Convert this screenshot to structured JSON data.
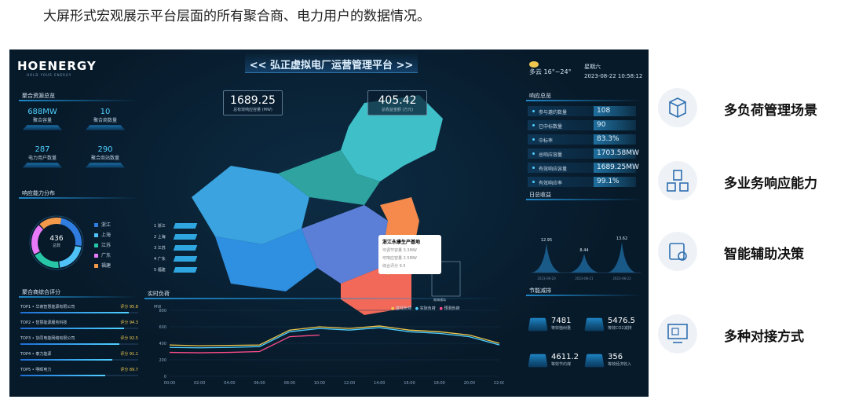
{
  "caption": "大屏形式宏观展示平台层面的所有聚合商、电力用户的数据情况。",
  "dashboard": {
    "logo": "HOENERGY",
    "logo_sub": "HOLD YOUR ENERGY",
    "title": "<< 弘正虚拟电厂运营管理平台 >>",
    "weather": {
      "icon": "partly-cloudy-icon",
      "text": "多云 16°~24°"
    },
    "weekday": "星期六",
    "datetime": "2023-08-22  10:58:12",
    "resources": {
      "title": "聚合资源总览",
      "items": [
        {
          "value": "688MW",
          "label": "聚合容量"
        },
        {
          "value": "10",
          "label": "聚合商数量"
        },
        {
          "value": "287",
          "label": "电力用户数量"
        },
        {
          "value": "290",
          "label": "聚合商站数量"
        }
      ]
    },
    "distribution": {
      "title": "响应能力分布",
      "center_value": "436",
      "center_label": "总数",
      "legend": [
        {
          "name": "浙江",
          "color": "#2f7de1"
        },
        {
          "name": "上海",
          "color": "#4fc3f7"
        },
        {
          "name": "江苏",
          "color": "#26c6a6"
        },
        {
          "name": "广东",
          "color": "#e879f9"
        },
        {
          "name": "福建",
          "color": "#f2994a"
        }
      ],
      "shares": [
        0.27,
        0.2,
        0.18,
        0.2,
        0.15
      ]
    },
    "ranking": {
      "title": "聚合商综合评分",
      "rows": [
        {
          "name": "TOP1 • 华南智慧能源有限公司",
          "score": "评分 95.8",
          "fraction": 0.92
        },
        {
          "name": "TOP2 • 智慧能源服务科技",
          "score": "评分 94.3",
          "fraction": 0.88
        },
        {
          "name": "TOP3 • 协同电能网络有限公司",
          "score": "评分 92.5",
          "fraction": 0.84
        },
        {
          "name": "TOP4 • 泰力能源",
          "score": "评分 91.1",
          "fraction": 0.78
        },
        {
          "name": "TOP5 • 明晖电力",
          "score": "评分 89.7",
          "fraction": 0.72
        }
      ]
    },
    "map": {
      "total_capacity": {
        "value": "1689.25",
        "label": "总有效响应容量 (MW)"
      },
      "total_revenue": {
        "value": "405.42",
        "label": "总收益金额 (万元)"
      },
      "provinces": [
        {
          "rank": "1",
          "name": "浙江"
        },
        {
          "rank": "2",
          "name": "上海"
        },
        {
          "rank": "3",
          "name": "江苏"
        },
        {
          "rank": "4",
          "name": "广东"
        },
        {
          "rank": "5",
          "name": "福建"
        }
      ],
      "tooltip": {
        "title": "浙江永康生产基地",
        "rows": [
          "可调节容量  3.3MW",
          "可响应容量  2.5MW",
          "综合评分  9.5"
        ]
      },
      "inset_label": "南海诸岛"
    },
    "response_overview": {
      "title": "响应总览",
      "rows": [
        {
          "label": "参与邀约数量",
          "value": "108"
        },
        {
          "label": "已中标数量",
          "value": "90"
        },
        {
          "label": "中标率",
          "value": "83.3%"
        },
        {
          "label": "总响应容量",
          "value": "1703.58MW"
        },
        {
          "label": "有效响应容量",
          "value": "1689.25MW"
        },
        {
          "label": "有效响应率",
          "value": "99.1%"
        }
      ]
    },
    "daily_revenue": {
      "title": "日总收益",
      "peaks": [
        "12.95",
        "8.44",
        "13.62"
      ],
      "dates": [
        "2023-08-20",
        "2023-08-21",
        "2023-08-22"
      ]
    },
    "energy_saving": {
      "title": "节能减排",
      "items": [
        {
          "value": "7481",
          "label": "等效植树量"
        },
        {
          "value": "5476.5",
          "label": "等效CO2减排"
        },
        {
          "value": "4611.2",
          "label": "等效节约煤"
        },
        {
          "value": "356",
          "label": "等效经济收入"
        }
      ]
    },
    "load": {
      "title": "实时负荷",
      "unit": "MW",
      "legend": [
        {
          "name": "基线负荷",
          "color": "#f2c94c"
        },
        {
          "name": "实际负荷",
          "color": "#4fd0ff"
        },
        {
          "name": "预测负荷",
          "color": "#ff4d8a"
        }
      ],
      "yticks": [
        "800",
        "600",
        "400",
        "200",
        "0"
      ],
      "xticks": [
        "00:00",
        "02:00",
        "04:00",
        "06:00",
        "08:00",
        "10:00",
        "12:00",
        "14:00",
        "16:00",
        "18:00",
        "20:00",
        "22:00"
      ]
    }
  },
  "chart_data": {
    "type": "line",
    "title": "实时负荷",
    "ylabel": "MW",
    "ylim": [
      0,
      800
    ],
    "x": [
      "00:00",
      "02:00",
      "04:00",
      "06:00",
      "08:00",
      "10:00",
      "12:00",
      "14:00",
      "16:00",
      "18:00",
      "20:00",
      "22:00"
    ],
    "series": [
      {
        "name": "基线负荷",
        "values": [
          380,
          370,
          375,
          380,
          560,
          600,
          580,
          610,
          560,
          540,
          500,
          400
        ]
      },
      {
        "name": "实际负荷",
        "values": [
          350,
          345,
          350,
          360,
          540,
          580,
          560,
          590,
          540,
          520,
          480,
          380
        ]
      },
      {
        "name": "预测负荷",
        "values": [
          290,
          285,
          290,
          300,
          480,
          500,
          null,
          null,
          null,
          null,
          null,
          null
        ]
      }
    ]
  },
  "features": [
    {
      "icon": "multi-load-icon",
      "label": "多负荷管理场景"
    },
    {
      "icon": "business-response-icon",
      "label": "多业务响应能力"
    },
    {
      "icon": "decision-support-icon",
      "label": "智能辅助决策"
    },
    {
      "icon": "integration-icon",
      "label": "多种对接方式"
    }
  ]
}
